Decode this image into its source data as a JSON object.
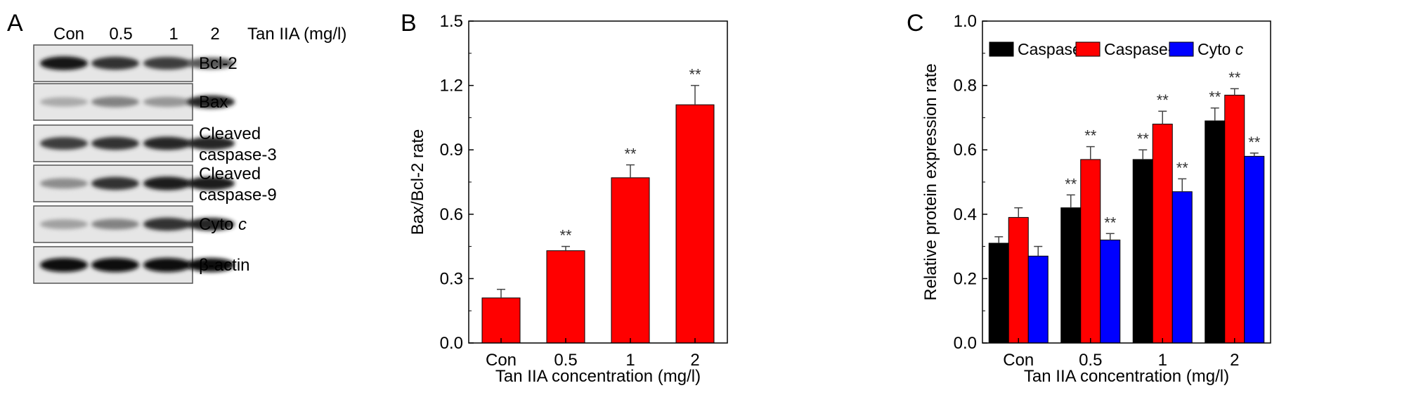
{
  "panel_a": {
    "letter": "A",
    "lanes": [
      "Con",
      "0.5",
      "1",
      "2"
    ],
    "treatment_label": "Tan IIA (mg/l)",
    "blots": [
      {
        "label_lines": [
          "Bcl-2"
        ],
        "intensity": [
          0.95,
          0.8,
          0.75,
          0.6
        ]
      },
      {
        "label_lines": [
          "Bax"
        ],
        "intensity": [
          0.2,
          0.4,
          0.3,
          0.85
        ]
      },
      {
        "label_lines": [
          "Cleaved",
          "caspase-3"
        ],
        "intensity": [
          0.75,
          0.8,
          0.85,
          0.85
        ]
      },
      {
        "label_lines": [
          "Cleaved",
          "caspase-9"
        ],
        "intensity": [
          0.35,
          0.8,
          0.9,
          0.9
        ]
      },
      {
        "label_lines": [
          "Cyto c"
        ],
        "intensity": [
          0.25,
          0.4,
          0.8,
          0.85
        ]
      },
      {
        "label_lines": [
          "β-actin"
        ],
        "intensity": [
          1.0,
          1.0,
          1.0,
          1.0
        ]
      }
    ]
  },
  "chart_data": [
    {
      "panel": "B",
      "type": "bar",
      "categories": [
        "Con",
        "0.5",
        "1",
        "2"
      ],
      "series": [
        {
          "values": [
            0.21,
            0.43,
            0.77,
            1.11
          ],
          "errors": [
            0.04,
            0.02,
            0.06,
            0.09
          ],
          "color": "#ff0000"
        }
      ],
      "annotations": [
        "",
        "**",
        "**",
        "**"
      ],
      "xlabel": "Tan IIA concentration (mg/l)",
      "ylabel": "Bax/Bcl-2 rate",
      "ylim": [
        0,
        1.5
      ],
      "yticks": [
        "0.0",
        "0.3",
        "0.6",
        "0.9",
        "1.2",
        "1.5"
      ],
      "grid": false
    },
    {
      "panel": "C",
      "type": "bar",
      "categories": [
        "Con",
        "0.5",
        "1",
        "2"
      ],
      "series": [
        {
          "name": "Caspase-3",
          "values": [
            0.31,
            0.42,
            0.57,
            0.69
          ],
          "errors": [
            0.02,
            0.04,
            0.03,
            0.04
          ],
          "color": "#000000"
        },
        {
          "name": "Caspase-9",
          "values": [
            0.39,
            0.57,
            0.68,
            0.77
          ],
          "errors": [
            0.03,
            0.04,
            0.04,
            0.02
          ],
          "color": "#ff0000"
        },
        {
          "name": "Cyto c",
          "values": [
            0.27,
            0.32,
            0.47,
            0.58
          ],
          "errors": [
            0.03,
            0.02,
            0.04,
            0.01
          ],
          "color": "#0000ff"
        }
      ],
      "annotations": [
        [
          "",
          "",
          ""
        ],
        [
          "**",
          "**",
          "**"
        ],
        [
          "**",
          "**",
          "**"
        ],
        [
          "**",
          "**",
          "**"
        ]
      ],
      "legend": {
        "placement": "top",
        "entries": [
          "Caspase-3",
          "Caspase-9",
          "Cyto c"
        ]
      },
      "xlabel": "Tan IIA concentration (mg/l)",
      "ylabel": "Relative protein expression rate",
      "ylim": [
        0,
        1.0
      ],
      "yticks": [
        "0.0",
        "0.2",
        "0.4",
        "0.6",
        "0.8",
        "1.0"
      ],
      "grid": false
    }
  ],
  "letters": {
    "b": "B",
    "c": "C"
  }
}
